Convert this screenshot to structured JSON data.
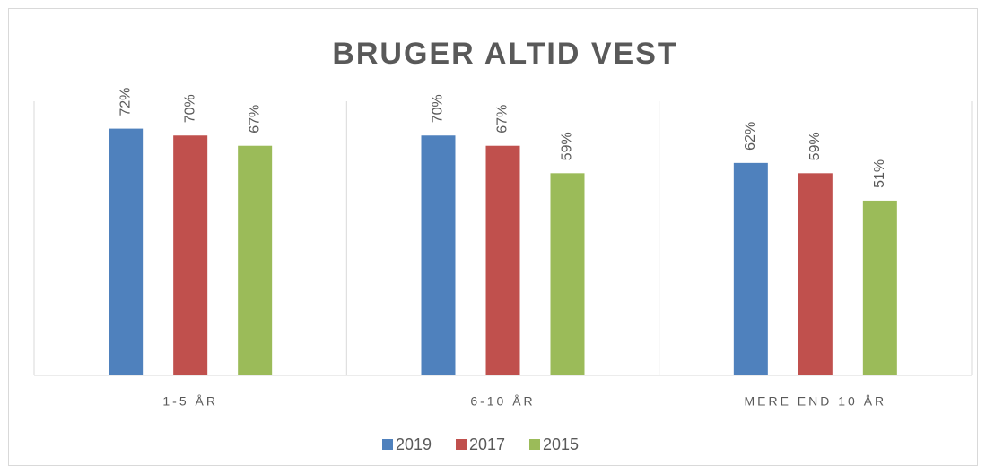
{
  "chart_data": {
    "type": "bar",
    "title": "BRUGER ALTID VEST",
    "categories": [
      "1-5 ÅR",
      "6-10 ÅR",
      "MERE END 10 ÅR"
    ],
    "series": [
      {
        "name": "2019",
        "color": "#4f81bd",
        "values": [
          72,
          70,
          62
        ],
        "value_labels": [
          "72%",
          "70%",
          "62%"
        ]
      },
      {
        "name": "2017",
        "color": "#c0504d",
        "values": [
          70,
          67,
          59
        ],
        "value_labels": [
          "70%",
          "67%",
          "59%"
        ]
      },
      {
        "name": "2015",
        "color": "#9bbb59",
        "values": [
          67,
          59,
          51
        ],
        "value_labels": [
          "67%",
          "59%",
          "51%"
        ]
      }
    ],
    "ylim": [
      0,
      80
    ],
    "legend": "bottom"
  }
}
